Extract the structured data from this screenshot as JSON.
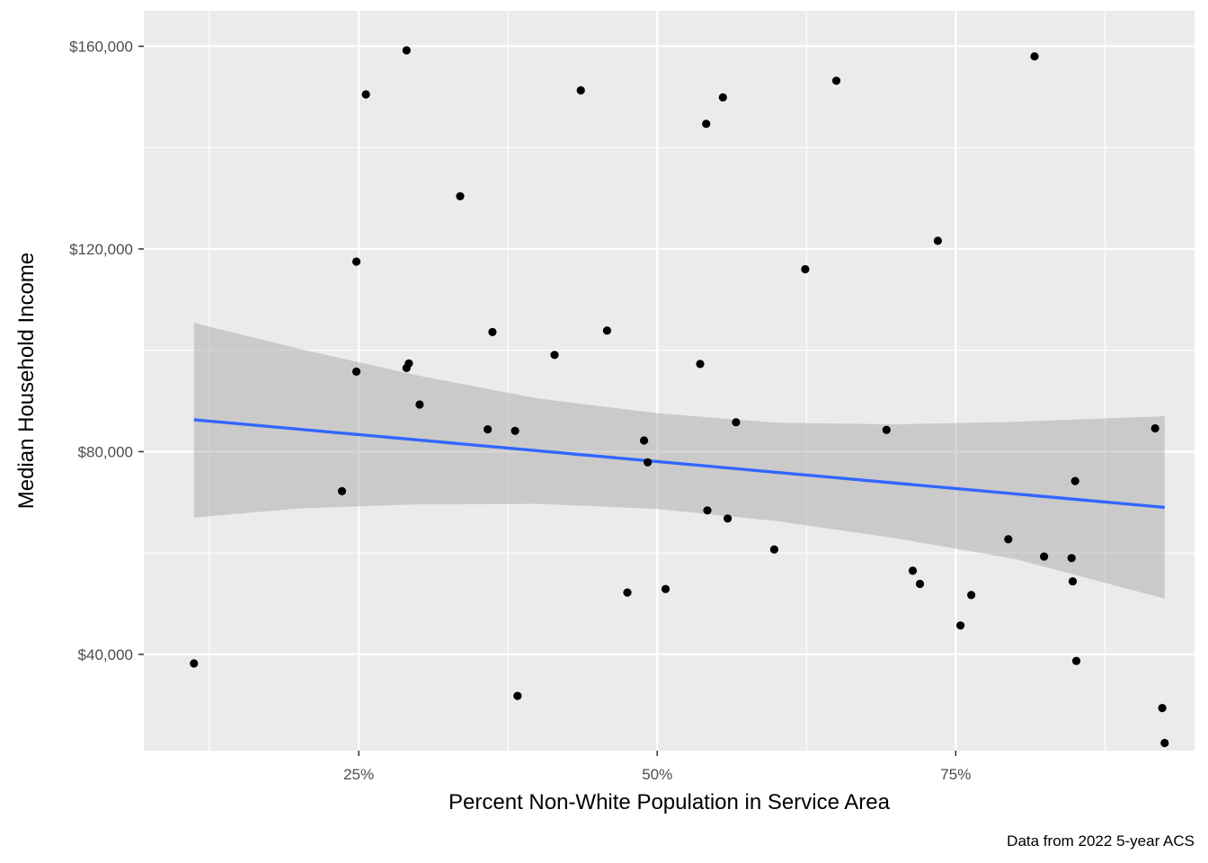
{
  "chart_data": {
    "type": "scatter",
    "title": "",
    "xlabel": "Percent Non-White Population in Service Area",
    "ylabel": "Median Household Income",
    "caption": "Data from 2022 5-year ACS",
    "xlim": [
      0.07,
      0.95
    ],
    "ylim": [
      21000,
      167000
    ],
    "x_ticks": [
      {
        "value": 0.25,
        "label": "25%"
      },
      {
        "value": 0.5,
        "label": "50%"
      },
      {
        "value": 0.75,
        "label": "75%"
      }
    ],
    "x_minor": [
      0.125,
      0.375,
      0.625,
      0.875
    ],
    "y_ticks": [
      {
        "value": 40000,
        "label": "$40,000"
      },
      {
        "value": 80000,
        "label": "$80,000"
      },
      {
        "value": 120000,
        "label": "$120,000"
      },
      {
        "value": 160000,
        "label": "$160,000"
      }
    ],
    "y_minor": [
      20000,
      60000,
      100000,
      140000
    ],
    "grid": true,
    "colors": {
      "panel": "#ebebeb",
      "grid": "#ffffff",
      "points": "#000000",
      "fit_line": "#3366ff",
      "ribbon": "#999999"
    },
    "points": [
      [
        0.112,
        38200
      ],
      [
        0.236,
        72200
      ],
      [
        0.248,
        117500
      ],
      [
        0.248,
        95800
      ],
      [
        0.256,
        150500
      ],
      [
        0.29,
        159200
      ],
      [
        0.29,
        96500
      ],
      [
        0.292,
        97400
      ],
      [
        0.301,
        89300
      ],
      [
        0.335,
        130400
      ],
      [
        0.358,
        84400
      ],
      [
        0.362,
        103600
      ],
      [
        0.381,
        84100
      ],
      [
        0.383,
        31800
      ],
      [
        0.414,
        99100
      ],
      [
        0.436,
        151300
      ],
      [
        0.458,
        103900
      ],
      [
        0.475,
        52200
      ],
      [
        0.489,
        82200
      ],
      [
        0.492,
        77900
      ],
      [
        0.507,
        52900
      ],
      [
        0.536,
        97300
      ],
      [
        0.541,
        144700
      ],
      [
        0.542,
        68400
      ],
      [
        0.555,
        149900
      ],
      [
        0.559,
        66800
      ],
      [
        0.566,
        85800
      ],
      [
        0.598,
        60700
      ],
      [
        0.624,
        116000
      ],
      [
        0.65,
        153200
      ],
      [
        0.692,
        84300
      ],
      [
        0.714,
        56500
      ],
      [
        0.72,
        53900
      ],
      [
        0.735,
        121600
      ],
      [
        0.754,
        45700
      ],
      [
        0.763,
        51700
      ],
      [
        0.794,
        62700
      ],
      [
        0.816,
        158000
      ],
      [
        0.824,
        59300
      ],
      [
        0.847,
        59000
      ],
      [
        0.848,
        54400
      ],
      [
        0.85,
        74200
      ],
      [
        0.851,
        38700
      ],
      [
        0.917,
        84600
      ],
      [
        0.923,
        29400
      ],
      [
        0.925,
        22500
      ]
    ],
    "fit_line": [
      [
        0.112,
        86300
      ],
      [
        0.925,
        69000
      ]
    ],
    "confidence_band": {
      "x": [
        0.112,
        0.2,
        0.3,
        0.4,
        0.5,
        0.6,
        0.7,
        0.8,
        0.925
      ],
      "lower": [
        67000,
        68800,
        69600,
        69700,
        68700,
        66300,
        62900,
        58800,
        51000
      ],
      "upper": [
        105400,
        100300,
        95000,
        90500,
        87600,
        85700,
        85400,
        85900,
        87000
      ]
    }
  }
}
